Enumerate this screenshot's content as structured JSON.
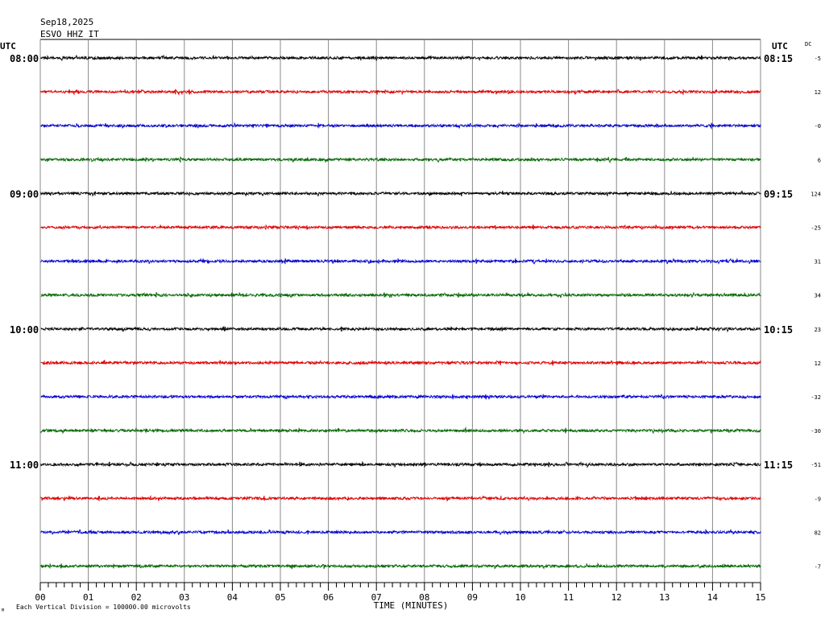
{
  "header": {
    "date": "Sep18,2025",
    "station": "ESVO HHZ IT",
    "utc_left": "UTC",
    "utc_right": "UTC",
    "dc_label": "DC"
  },
  "footer": {
    "note": "Each Vertical Division = 100000.00 microvolts",
    "corner_mark": "M"
  },
  "colors": {
    "black": "#000000",
    "red": "#dd0000",
    "blue": "#0000cc",
    "green": "#006600",
    "grid": "#888888"
  },
  "chart_data": {
    "type": "line",
    "xlabel": "TIME (MINUTES)",
    "xlim": [
      0,
      15
    ],
    "x_ticks": [
      "00",
      "01",
      "02",
      "03",
      "04",
      "05",
      "06",
      "07",
      "08",
      "09",
      "10",
      "11",
      "12",
      "13",
      "14",
      "15"
    ],
    "rows_per_hour": 4,
    "minutes_per_row": 15,
    "color_cycle": [
      "black",
      "red",
      "blue",
      "green"
    ],
    "left_time_labels": [
      {
        "row": 0,
        "text": "08:00"
      },
      {
        "row": 4,
        "text": "09:00"
      },
      {
        "row": 8,
        "text": "10:00"
      },
      {
        "row": 12,
        "text": "11:00"
      }
    ],
    "right_time_labels": [
      {
        "row": 0,
        "text": "08:15"
      },
      {
        "row": 4,
        "text": "09:15"
      },
      {
        "row": 8,
        "text": "10:15"
      },
      {
        "row": 12,
        "text": "11:15"
      }
    ],
    "dc_offsets": [
      "-5",
      "12",
      "-0",
      "6",
      "124",
      "-25",
      "31",
      "34",
      "23",
      "12",
      "-32",
      "-30",
      "-51",
      "-9",
      "82",
      "-7"
    ]
  }
}
